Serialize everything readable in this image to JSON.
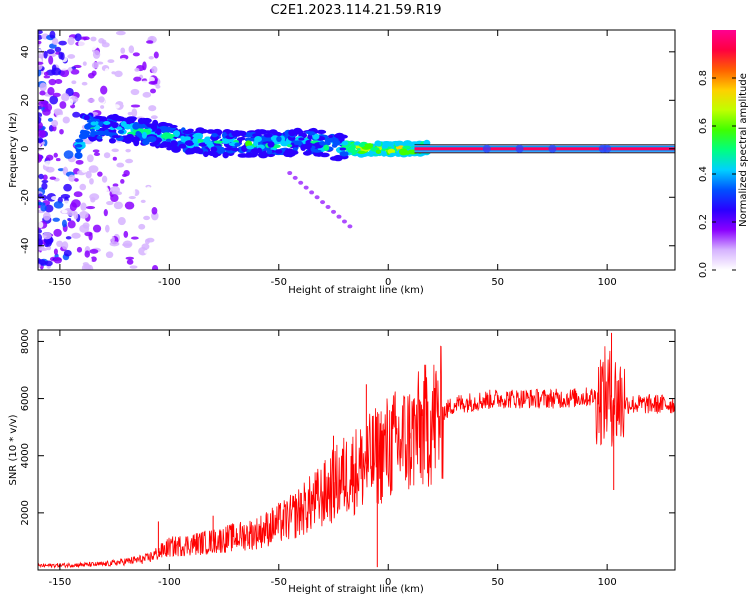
{
  "figure": {
    "title": "C2E1.2023.114.21.59.R19"
  },
  "chart_data": [
    {
      "type": "heatmap",
      "xlabel": "Height of straight line (km)",
      "ylabel": "Frequency (Hz)",
      "xlim": [
        -160,
        131
      ],
      "ylim": [
        -50,
        49
      ],
      "xticks": [
        -150,
        -100,
        -50,
        0,
        50,
        100
      ],
      "yticks": [
        -40,
        -20,
        0,
        20,
        40
      ],
      "colorbar": {
        "label": "Normalized spectral amplitude",
        "range": [
          0,
          1
        ],
        "ticks": [
          "0.0",
          "0.2",
          "0.4",
          "0.6",
          "0.8"
        ],
        "colors": [
          "#ffffff",
          "#d6b3ff",
          "#8a00ff",
          "#2a00ff",
          "#0050ff",
          "#00d0ff",
          "#00ff80",
          "#40ff00",
          "#c0ff00",
          "#ffd000",
          "#ff6000",
          "#ff0040",
          "#ff0090"
        ]
      },
      "ridge": [
        {
          "x": -140,
          "y": 9
        },
        {
          "x": -120,
          "y": 8
        },
        {
          "x": -105,
          "y": 6
        },
        {
          "x": -90,
          "y": 3
        },
        {
          "x": -70,
          "y": 2
        },
        {
          "x": -50,
          "y": 2
        },
        {
          "x": -35,
          "y": 3
        },
        {
          "x": -25,
          "y": 1
        },
        {
          "x": -15,
          "y": 0
        },
        {
          "x": 0,
          "y": 0
        },
        {
          "x": 15,
          "y": 0
        },
        {
          "x": 131,
          "y": 0
        }
      ]
    },
    {
      "type": "line",
      "xlabel": "Height of straight line (km)",
      "ylabel": "SNR (10 * v/v)",
      "xlim": [
        -160,
        131
      ],
      "ylim": [
        0,
        8400
      ],
      "xticks": [
        -150,
        -100,
        -50,
        0,
        50,
        100
      ],
      "yticks": [
        2000,
        4000,
        6000,
        8000
      ],
      "color": "#ff0000",
      "envelope": [
        {
          "x": -160,
          "y": 150
        },
        {
          "x": -130,
          "y": 200
        },
        {
          "x": -110,
          "y": 400
        },
        {
          "x": -100,
          "y": 800
        },
        {
          "x": -80,
          "y": 1000
        },
        {
          "x": -60,
          "y": 1300
        },
        {
          "x": -45,
          "y": 1800
        },
        {
          "x": -30,
          "y": 2600
        },
        {
          "x": -20,
          "y": 3300
        },
        {
          "x": -10,
          "y": 3700
        },
        {
          "x": 0,
          "y": 4300
        },
        {
          "x": 10,
          "y": 4600
        },
        {
          "x": 20,
          "y": 5200
        },
        {
          "x": 30,
          "y": 5800
        },
        {
          "x": 50,
          "y": 6000
        },
        {
          "x": 80,
          "y": 6000
        },
        {
          "x": 100,
          "y": 6100
        },
        {
          "x": 110,
          "y": 5800
        },
        {
          "x": 131,
          "y": 5800
        }
      ],
      "spikes": [
        {
          "x": -105,
          "y": 1700
        },
        {
          "x": -80,
          "y": 1900
        },
        {
          "x": -40,
          "y": 2700
        },
        {
          "x": -25,
          "y": 4700
        },
        {
          "x": -10,
          "y": 6500
        },
        {
          "x": -5,
          "y": 100
        },
        {
          "x": 10,
          "y": 4800
        },
        {
          "x": 102,
          "y": 8300
        },
        {
          "x": 103,
          "y": 2800
        }
      ]
    }
  ]
}
